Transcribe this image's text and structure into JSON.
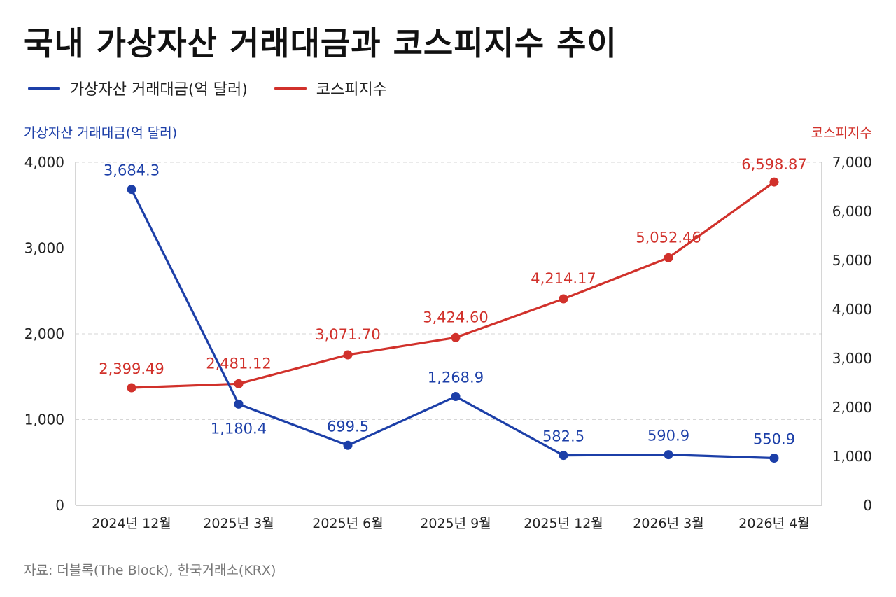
{
  "title": "국내 가상자산 거래대금과 코스피지수 추이",
  "source": "자료: 더블록(The Block), 한국거래소(KRX)",
  "colors": {
    "series_blue": "#1c3fa8",
    "series_red": "#d1312b",
    "grid": "#d6d6d6"
  },
  "chart_data": {
    "type": "line",
    "title": "국내 가상자산 거래대금과 코스피지수 추이",
    "categories": [
      "2024년 12월",
      "2025년 3월",
      "2025년 6월",
      "2025년 9월",
      "2025년 12월",
      "2026년 3월",
      "2026년 4월"
    ],
    "y_left": {
      "label": "가상자산 거래대금(억 달러)",
      "range": [
        0,
        4000
      ],
      "ticks": [
        0,
        1000,
        2000,
        3000,
        4000
      ],
      "tick_labels": [
        "0",
        "1,000",
        "2,000",
        "3,000",
        "4,000"
      ]
    },
    "y_right": {
      "label": "코스피지수",
      "range": [
        0,
        7000
      ],
      "ticks": [
        0,
        1000,
        2000,
        3000,
        4000,
        5000,
        6000,
        7000
      ],
      "tick_labels": [
        "0",
        "1,000",
        "2,000",
        "3,000",
        "4,000",
        "5,000",
        "6,000",
        "7,000"
      ]
    },
    "grid": true,
    "legend_position": "top-left",
    "series": [
      {
        "name": "가상자산 거래대금(억 달러)",
        "axis": "left",
        "color": "#1c3fa8",
        "values": [
          3684.3,
          1180.4,
          699.5,
          1268.9,
          582.5,
          590.9,
          550.9
        ],
        "labels": [
          "3,684.3",
          "1,180.4",
          "699.5",
          "1,268.9",
          "582.5",
          "590.9",
          "550.9"
        ]
      },
      {
        "name": "코스피지수",
        "axis": "right",
        "color": "#d1312b",
        "values": [
          2399.49,
          2481.12,
          3071.7,
          3424.6,
          4214.17,
          5052.46,
          6598.87
        ],
        "labels": [
          "2,399.49",
          "2,481.12",
          "3,071.70",
          "3,424.60",
          "4,214.17",
          "5,052.46",
          "6,598.87"
        ]
      }
    ]
  }
}
